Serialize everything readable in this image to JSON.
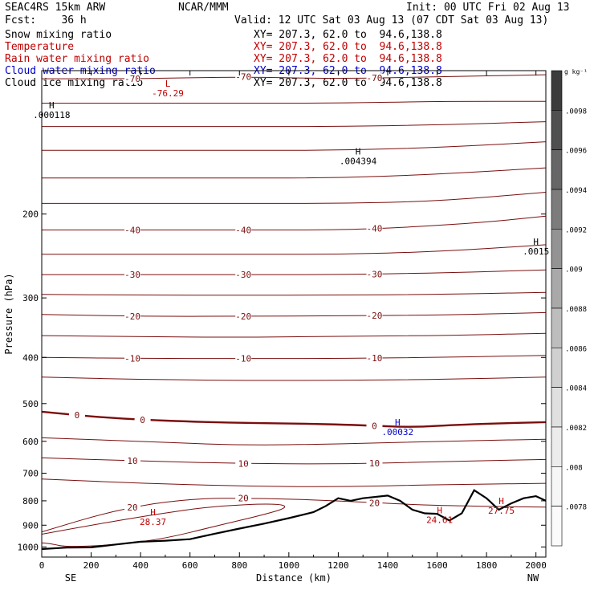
{
  "header": {
    "model": "SEAC4RS 15km ARW",
    "center": "NCAR/MMM",
    "init": "Init: 00 UTC Fri 02 Aug 13",
    "fcst": "Fcst:    36 h",
    "valid": "Valid: 12 UTC Sat 03 Aug 13 (07 CDT Sat 03 Aug 13)"
  },
  "fields": [
    {
      "name": "Snow mixing ratio",
      "xy": "XY= 207.3, 62.0 to  94.6,138.8",
      "color": "#000000"
    },
    {
      "name": "Temperature",
      "xy": "XY= 207.3, 62.0 to  94.6,138.8",
      "color": "#c00000"
    },
    {
      "name": "Rain water mixing ratio",
      "xy": "XY= 207.3, 62.0 to  94.6,138.8",
      "color": "#c00000"
    },
    {
      "name": "Cloud water mixing ratio",
      "xy": "XY= 207.3, 62.0 to  94.6,138.8",
      "color": "#0000cc"
    },
    {
      "name": "Cloud ice mixing ratio",
      "xy": "XY= 207.3, 62.0 to  94.6,138.8",
      "color": "#000000"
    }
  ],
  "chart_data": {
    "type": "contour-cross-section",
    "xlabel": "Distance (km)",
    "ylabel": "Pressure (hPa)",
    "xlim": [
      0,
      2040
    ],
    "ylim": [
      1050,
      100
    ],
    "y_scale": "log",
    "x_ticks": [
      0,
      200,
      400,
      600,
      800,
      1000,
      1200,
      1400,
      1600,
      1800,
      2000
    ],
    "y_ticks": [
      200,
      300,
      400,
      500,
      600,
      700,
      800,
      900,
      1000
    ],
    "endpoints": {
      "left": "SE",
      "right": "NW"
    },
    "temperature_contours": [
      {
        "value": -70,
        "label": "-70",
        "points": [
          [
            0,
            104
          ],
          [
            400,
            104
          ],
          [
            800,
            103
          ],
          [
            1200,
            104
          ],
          [
            1600,
            103
          ],
          [
            2040,
            102
          ]
        ]
      },
      {
        "value": -65,
        "label": "",
        "points": [
          [
            0,
            117
          ],
          [
            400,
            117
          ],
          [
            800,
            117
          ],
          [
            1200,
            117
          ],
          [
            1600,
            116
          ],
          [
            2040,
            116
          ]
        ]
      },
      {
        "value": -60,
        "label": "",
        "points": [
          [
            0,
            131
          ],
          [
            400,
            131
          ],
          [
            800,
            131
          ],
          [
            1200,
            131
          ],
          [
            1600,
            130
          ],
          [
            2040,
            128
          ]
        ]
      },
      {
        "value": -55,
        "label": "",
        "points": [
          [
            0,
            147
          ],
          [
            400,
            147
          ],
          [
            800,
            147
          ],
          [
            1200,
            147
          ],
          [
            1600,
            145
          ],
          [
            2040,
            141
          ]
        ]
      },
      {
        "value": -50,
        "label": "",
        "points": [
          [
            0,
            168
          ],
          [
            400,
            168
          ],
          [
            800,
            168
          ],
          [
            1200,
            168
          ],
          [
            1600,
            165
          ],
          [
            2040,
            160
          ]
        ]
      },
      {
        "value": -45,
        "label": "",
        "points": [
          [
            0,
            190
          ],
          [
            400,
            190
          ],
          [
            800,
            190
          ],
          [
            1200,
            190
          ],
          [
            1600,
            188
          ],
          [
            2040,
            180
          ]
        ]
      },
      {
        "value": -40,
        "label": "-40",
        "points": [
          [
            0,
            216
          ],
          [
            400,
            216
          ],
          [
            800,
            216
          ],
          [
            1200,
            216
          ],
          [
            1500,
            213
          ],
          [
            1800,
            208
          ],
          [
            2040,
            202
          ]
        ]
      },
      {
        "value": -35,
        "label": "",
        "points": [
          [
            0,
            243
          ],
          [
            400,
            243
          ],
          [
            800,
            243
          ],
          [
            1200,
            243
          ],
          [
            1600,
            240
          ],
          [
            2040,
            232
          ]
        ]
      },
      {
        "value": -30,
        "label": "-30",
        "points": [
          [
            0,
            268
          ],
          [
            400,
            268
          ],
          [
            800,
            268
          ],
          [
            1200,
            268
          ],
          [
            1600,
            266
          ],
          [
            2040,
            262
          ]
        ]
      },
      {
        "value": -25,
        "label": "",
        "points": [
          [
            0,
            295
          ],
          [
            400,
            296
          ],
          [
            800,
            296
          ],
          [
            1200,
            296
          ],
          [
            1600,
            295
          ],
          [
            2040,
            292
          ]
        ]
      },
      {
        "value": -20,
        "label": "-20",
        "points": [
          [
            0,
            325
          ],
          [
            400,
            328
          ],
          [
            800,
            328
          ],
          [
            1200,
            327
          ],
          [
            1600,
            326
          ],
          [
            2040,
            322
          ]
        ]
      },
      {
        "value": -15,
        "label": "",
        "points": [
          [
            0,
            360
          ],
          [
            400,
            362
          ],
          [
            800,
            363
          ],
          [
            1200,
            361
          ],
          [
            1600,
            360
          ],
          [
            2040,
            356
          ]
        ]
      },
      {
        "value": -10,
        "label": "-10",
        "points": [
          [
            0,
            400
          ],
          [
            400,
            402
          ],
          [
            800,
            402
          ],
          [
            1200,
            402
          ],
          [
            1600,
            400
          ],
          [
            2040,
            396
          ]
        ]
      },
      {
        "value": -5,
        "label": "",
        "points": [
          [
            0,
            440
          ],
          [
            400,
            445
          ],
          [
            800,
            447
          ],
          [
            1200,
            447
          ],
          [
            1600,
            445
          ],
          [
            2040,
            440
          ]
        ]
      },
      {
        "value": 0,
        "label": "0",
        "points": [
          [
            0,
            520
          ],
          [
            300,
            538
          ],
          [
            700,
            548
          ],
          [
            1000,
            550
          ],
          [
            1300,
            555
          ],
          [
            1500,
            561
          ],
          [
            1700,
            553
          ],
          [
            2040,
            547
          ]
        ]
      },
      {
        "value": 5,
        "label": "",
        "points": [
          [
            0,
            590
          ],
          [
            400,
            600
          ],
          [
            800,
            612
          ],
          [
            1200,
            608
          ],
          [
            1600,
            600
          ],
          [
            2040,
            594
          ]
        ]
      },
      {
        "value": 10,
        "label": "10",
        "points": [
          [
            0,
            650
          ],
          [
            400,
            660
          ],
          [
            800,
            668
          ],
          [
            1200,
            670
          ],
          [
            1600,
            662
          ],
          [
            2040,
            655
          ]
        ]
      },
      {
        "value": 15,
        "label": "",
        "points": [
          [
            0,
            720
          ],
          [
            400,
            735
          ],
          [
            800,
            745
          ],
          [
            1200,
            748
          ],
          [
            1600,
            740
          ],
          [
            2040,
            735
          ]
        ]
      },
      {
        "value": 20,
        "label": "20",
        "points": [
          [
            0,
            930
          ],
          [
            300,
            835
          ],
          [
            600,
            790
          ],
          [
            900,
            790
          ],
          [
            1200,
            800
          ],
          [
            1500,
            815
          ],
          [
            1700,
            820
          ],
          [
            2040,
            825
          ]
        ]
      },
      {
        "value": 25,
        "label": "",
        "points": [
          [
            0,
            940
          ],
          [
            200,
            900
          ],
          [
            450,
            855
          ],
          [
            700,
            820
          ],
          [
            950,
            810
          ],
          [
            1000,
            825
          ],
          [
            900,
            855
          ],
          [
            700,
            905
          ],
          [
            500,
            960
          ],
          [
            300,
            990
          ],
          [
            100,
            1000
          ],
          [
            40,
            985
          ],
          [
            0,
            980
          ]
        ]
      }
    ],
    "terrain": [
      [
        0,
        1010
      ],
      [
        100,
        1003
      ],
      [
        200,
        1002
      ],
      [
        300,
        988
      ],
      [
        400,
        975
      ],
      [
        500,
        970
      ],
      [
        600,
        963
      ],
      [
        700,
        938
      ],
      [
        800,
        915
      ],
      [
        900,
        893
      ],
      [
        1000,
        870
      ],
      [
        1100,
        845
      ],
      [
        1150,
        820
      ],
      [
        1200,
        790
      ],
      [
        1250,
        800
      ],
      [
        1300,
        790
      ],
      [
        1400,
        780
      ],
      [
        1450,
        800
      ],
      [
        1500,
        835
      ],
      [
        1550,
        850
      ],
      [
        1600,
        852
      ],
      [
        1650,
        880
      ],
      [
        1700,
        850
      ],
      [
        1750,
        760
      ],
      [
        1800,
        790
      ],
      [
        1850,
        835
      ],
      [
        1900,
        810
      ],
      [
        1950,
        790
      ],
      [
        2000,
        782
      ],
      [
        2040,
        800
      ]
    ],
    "extrema": [
      {
        "type": "L",
        "value": "-76.29",
        "x": 510,
        "p": 108,
        "color": "#c00000"
      },
      {
        "type": "H",
        "value": ".000118",
        "x": 40,
        "p": 120,
        "color": "#000000"
      },
      {
        "type": "H",
        "value": ".004394",
        "x": 1280,
        "p": 150,
        "color": "#000000"
      },
      {
        "type": "H",
        "value": ".0015",
        "x": 2000,
        "p": 232,
        "color": "#000000"
      },
      {
        "type": "H",
        "value": ".00032",
        "x": 1440,
        "p": 556,
        "color": "#0000cc"
      },
      {
        "type": "H",
        "value": "28.37",
        "x": 450,
        "p": 858,
        "color": "#c00000"
      },
      {
        "type": "H",
        "value": "24.61",
        "x": 1610,
        "p": 850,
        "color": "#c00000"
      },
      {
        "type": "H",
        "value": "27.75",
        "x": 1860,
        "p": 812,
        "color": "#c00000"
      }
    ],
    "colorbar": {
      "unit": "g kg⁻¹",
      "labels": [
        ".0098",
        ".0096",
        ".0094",
        ".0092",
        ".009",
        ".0088",
        ".0086",
        ".0084",
        ".0082",
        ".008",
        ".0078"
      ],
      "colors": [
        "#3c3c3c",
        "#4f4f4f",
        "#666666",
        "#7c7c7c",
        "#939393",
        "#a9a9a9",
        "#bdbdbd",
        "#d0d0d0",
        "#e0e0e0",
        "#ececec",
        "#f6f6f6",
        "#fbfbfb"
      ]
    }
  }
}
